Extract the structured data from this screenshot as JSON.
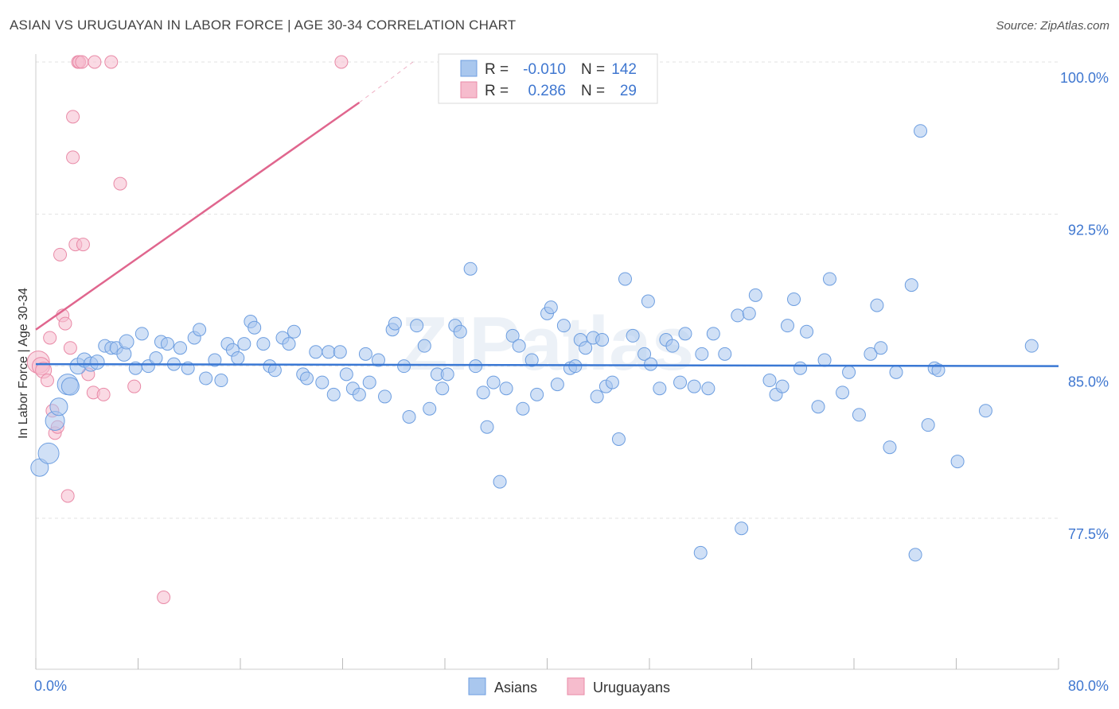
{
  "title": "ASIAN VS URUGUAYAN IN LABOR FORCE | AGE 30-34 CORRELATION CHART",
  "source": "Source: ZipAtlas.com",
  "watermark": "ZIPatlas",
  "colors": {
    "asian_fill": "#a9c7ee",
    "asian_stroke": "#6d9ee0",
    "asian_line": "#3a78d4",
    "uru_fill": "#f6bccd",
    "uru_stroke": "#e98aa7",
    "uru_line": "#e0668e",
    "tick_label": "#3f77d0",
    "grid": "#e3e3e3"
  },
  "legend": {
    "rows": [
      {
        "r_label": "R =",
        "r_value": "-0.010",
        "n_label": "N =",
        "n_value": "142"
      },
      {
        "r_label": "R =",
        "r_value": "0.286",
        "n_label": "N =",
        "n_value": "29"
      }
    ]
  },
  "bottom_legend": [
    "Asians",
    "Uruguayans"
  ],
  "chart_data": {
    "type": "scatter",
    "title": "ASIAN VS URUGUAYAN IN LABOR FORCE | AGE 30-34 CORRELATION CHART",
    "xlabel": "",
    "ylabel": "In Labor Force | Age 30-34",
    "xlim": [
      0,
      80
    ],
    "ylim": [
      70.5,
      100.5
    ],
    "x_tick_labels": [
      "0.0%",
      "80.0%"
    ],
    "y_ticks": [
      77.5,
      85.0,
      92.5,
      100.0
    ],
    "y_tick_labels": [
      "77.5%",
      "85.0%",
      "92.5%",
      "100.0%"
    ],
    "grid": true,
    "series": [
      {
        "name": "Asians",
        "R": -0.01,
        "N": 142,
        "trend": {
          "x": [
            0,
            80
          ],
          "y": [
            85.1,
            85.0
          ]
        },
        "points": [
          [
            0.3,
            80.0,
            11
          ],
          [
            1.0,
            80.7,
            13
          ],
          [
            1.5,
            82.3,
            12
          ],
          [
            1.8,
            83.0,
            11
          ],
          [
            2.5,
            84.1,
            13
          ],
          [
            2.7,
            84.0,
            11
          ],
          [
            3.3,
            85.0,
            10
          ],
          [
            3.8,
            85.3,
            9
          ],
          [
            4.3,
            85.1,
            9
          ],
          [
            4.8,
            85.2,
            9
          ],
          [
            5.4,
            86.0,
            8
          ],
          [
            5.9,
            85.9,
            8
          ],
          [
            6.3,
            85.9,
            8
          ],
          [
            6.9,
            85.6,
            9
          ],
          [
            7.1,
            86.2,
            9
          ],
          [
            7.8,
            84.9,
            8
          ],
          [
            8.3,
            86.6,
            8
          ],
          [
            8.8,
            85.0,
            8
          ],
          [
            9.4,
            85.4,
            8
          ],
          [
            9.8,
            86.2,
            8
          ],
          [
            10.3,
            86.1,
            8
          ],
          [
            10.8,
            85.1,
            8
          ],
          [
            11.3,
            85.9,
            8
          ],
          [
            11.9,
            84.9,
            8
          ],
          [
            12.4,
            86.4,
            8
          ],
          [
            12.8,
            86.8,
            8
          ],
          [
            13.3,
            84.4,
            8
          ],
          [
            14.0,
            85.3,
            8
          ],
          [
            14.5,
            84.3,
            8
          ],
          [
            15.0,
            86.1,
            8
          ],
          [
            15.4,
            85.8,
            8
          ],
          [
            15.8,
            85.4,
            8
          ],
          [
            16.3,
            86.1,
            8
          ],
          [
            16.8,
            87.2,
            8
          ],
          [
            17.1,
            86.9,
            8
          ],
          [
            17.8,
            86.1,
            8
          ],
          [
            18.3,
            85.0,
            8
          ],
          [
            18.7,
            84.8,
            8
          ],
          [
            19.3,
            86.4,
            8
          ],
          [
            19.8,
            86.1,
            8
          ],
          [
            20.2,
            86.7,
            8
          ],
          [
            20.9,
            84.6,
            8
          ],
          [
            21.2,
            84.4,
            8
          ],
          [
            21.9,
            85.7,
            8
          ],
          [
            22.4,
            84.2,
            8
          ],
          [
            22.9,
            85.7,
            8
          ],
          [
            23.3,
            83.6,
            8
          ],
          [
            23.8,
            85.7,
            8
          ],
          [
            24.3,
            84.6,
            8
          ],
          [
            24.8,
            83.9,
            8
          ],
          [
            25.3,
            83.6,
            8
          ],
          [
            25.8,
            85.6,
            8
          ],
          [
            26.1,
            84.2,
            8
          ],
          [
            26.8,
            85.3,
            8
          ],
          [
            27.3,
            83.5,
            8
          ],
          [
            27.9,
            86.8,
            8
          ],
          [
            28.1,
            87.1,
            8
          ],
          [
            28.8,
            85.0,
            8
          ],
          [
            29.2,
            82.5,
            8
          ],
          [
            29.8,
            87.0,
            8
          ],
          [
            30.4,
            86.0,
            8
          ],
          [
            30.8,
            82.9,
            8
          ],
          [
            31.4,
            84.6,
            8
          ],
          [
            31.8,
            83.9,
            8
          ],
          [
            32.2,
            84.6,
            8
          ],
          [
            32.8,
            87.0,
            8
          ],
          [
            33.2,
            86.7,
            8
          ],
          [
            34.0,
            89.8,
            8
          ],
          [
            34.4,
            85.0,
            8
          ],
          [
            35.0,
            83.7,
            8
          ],
          [
            35.3,
            82.0,
            8
          ],
          [
            35.8,
            84.2,
            8
          ],
          [
            36.3,
            79.3,
            8
          ],
          [
            36.8,
            83.9,
            8
          ],
          [
            37.3,
            86.5,
            8
          ],
          [
            37.8,
            86.0,
            8
          ],
          [
            38.1,
            82.9,
            8
          ],
          [
            38.8,
            85.3,
            8
          ],
          [
            39.2,
            83.6,
            8
          ],
          [
            40.0,
            87.6,
            8
          ],
          [
            40.3,
            87.9,
            8
          ],
          [
            40.8,
            84.1,
            8
          ],
          [
            41.3,
            87.0,
            8
          ],
          [
            41.8,
            84.9,
            8
          ],
          [
            42.2,
            85.0,
            8
          ],
          [
            42.6,
            86.3,
            8
          ],
          [
            43.0,
            85.9,
            8
          ],
          [
            43.6,
            86.4,
            8
          ],
          [
            43.9,
            83.5,
            8
          ],
          [
            44.3,
            86.3,
            8
          ],
          [
            44.6,
            84.0,
            8
          ],
          [
            45.1,
            84.2,
            8
          ],
          [
            45.6,
            81.4,
            8
          ],
          [
            46.1,
            89.3,
            8
          ],
          [
            46.7,
            86.5,
            8
          ],
          [
            47.6,
            85.6,
            8
          ],
          [
            47.9,
            88.2,
            8
          ],
          [
            48.1,
            85.1,
            8
          ],
          [
            48.8,
            83.9,
            8
          ],
          [
            49.3,
            86.3,
            8
          ],
          [
            49.8,
            86.0,
            8
          ],
          [
            50.4,
            84.2,
            8
          ],
          [
            50.8,
            86.6,
            8
          ],
          [
            51.5,
            84.0,
            8
          ],
          [
            52.1,
            85.6,
            8
          ],
          [
            52.6,
            83.9,
            8
          ],
          [
            53.0,
            86.6,
            8
          ],
          [
            53.9,
            85.6,
            8
          ],
          [
            54.9,
            87.5,
            8
          ],
          [
            55.8,
            87.6,
            8
          ],
          [
            56.3,
            88.5,
            8
          ],
          [
            57.4,
            84.3,
            8
          ],
          [
            57.9,
            83.6,
            8
          ],
          [
            58.4,
            84.0,
            8
          ],
          [
            58.8,
            87.0,
            8
          ],
          [
            59.3,
            88.3,
            8
          ],
          [
            59.8,
            84.9,
            8
          ],
          [
            60.3,
            86.7,
            8
          ],
          [
            61.2,
            83.0,
            8
          ],
          [
            61.7,
            85.3,
            8
          ],
          [
            62.1,
            89.3,
            8
          ],
          [
            63.1,
            83.7,
            8
          ],
          [
            63.6,
            84.7,
            8
          ],
          [
            64.4,
            82.6,
            8
          ],
          [
            65.3,
            85.6,
            8
          ],
          [
            65.8,
            88.0,
            8
          ],
          [
            66.1,
            85.9,
            8
          ],
          [
            66.8,
            81.0,
            8
          ],
          [
            67.3,
            84.7,
            8
          ],
          [
            68.5,
            89.0,
            8
          ],
          [
            68.8,
            75.7,
            8
          ],
          [
            69.2,
            96.6,
            8
          ],
          [
            69.8,
            82.1,
            8
          ],
          [
            70.3,
            84.9,
            8
          ],
          [
            70.6,
            84.8,
            8
          ],
          [
            72.1,
            80.3,
            8
          ],
          [
            74.3,
            82.8,
            8
          ],
          [
            77.9,
            86.0,
            8
          ],
          [
            55.2,
            77.0,
            8
          ],
          [
            52.0,
            75.8,
            8
          ]
        ]
      },
      {
        "name": "Uruguayans",
        "R": 0.286,
        "N": 29,
        "trend": {
          "x": [
            0,
            25.3
          ],
          "y": [
            86.8,
            98.0
          ]
        },
        "trend_extension": {
          "x": [
            25.3,
            29.5
          ],
          "y": [
            98.0,
            100.0
          ]
        },
        "points": [
          [
            0.2,
            85.2,
            14
          ],
          [
            0.4,
            85.0,
            11
          ],
          [
            0.6,
            84.8,
            10
          ],
          [
            0.9,
            84.3,
            8
          ],
          [
            1.1,
            86.4,
            8
          ],
          [
            1.3,
            82.8,
            8
          ],
          [
            1.5,
            81.7,
            8
          ],
          [
            1.7,
            82.0,
            8
          ],
          [
            1.9,
            90.5,
            8
          ],
          [
            2.1,
            87.5,
            8
          ],
          [
            2.3,
            87.1,
            8
          ],
          [
            2.5,
            78.6,
            8
          ],
          [
            2.7,
            85.9,
            8
          ],
          [
            2.9,
            97.3,
            8
          ],
          [
            2.9,
            95.3,
            8
          ],
          [
            3.1,
            91.0,
            8
          ],
          [
            3.3,
            100.0,
            8
          ],
          [
            3.4,
            100.0,
            8
          ],
          [
            3.6,
            100.0,
            8
          ],
          [
            3.7,
            91.0,
            8
          ],
          [
            4.1,
            84.6,
            8
          ],
          [
            4.5,
            83.7,
            8
          ],
          [
            4.6,
            100.0,
            8
          ],
          [
            5.3,
            83.6,
            8
          ],
          [
            5.9,
            100.0,
            8
          ],
          [
            6.6,
            94.0,
            8
          ],
          [
            7.7,
            84.0,
            8
          ],
          [
            10.0,
            73.6,
            8
          ],
          [
            23.9,
            100.0,
            8
          ]
        ]
      }
    ]
  }
}
